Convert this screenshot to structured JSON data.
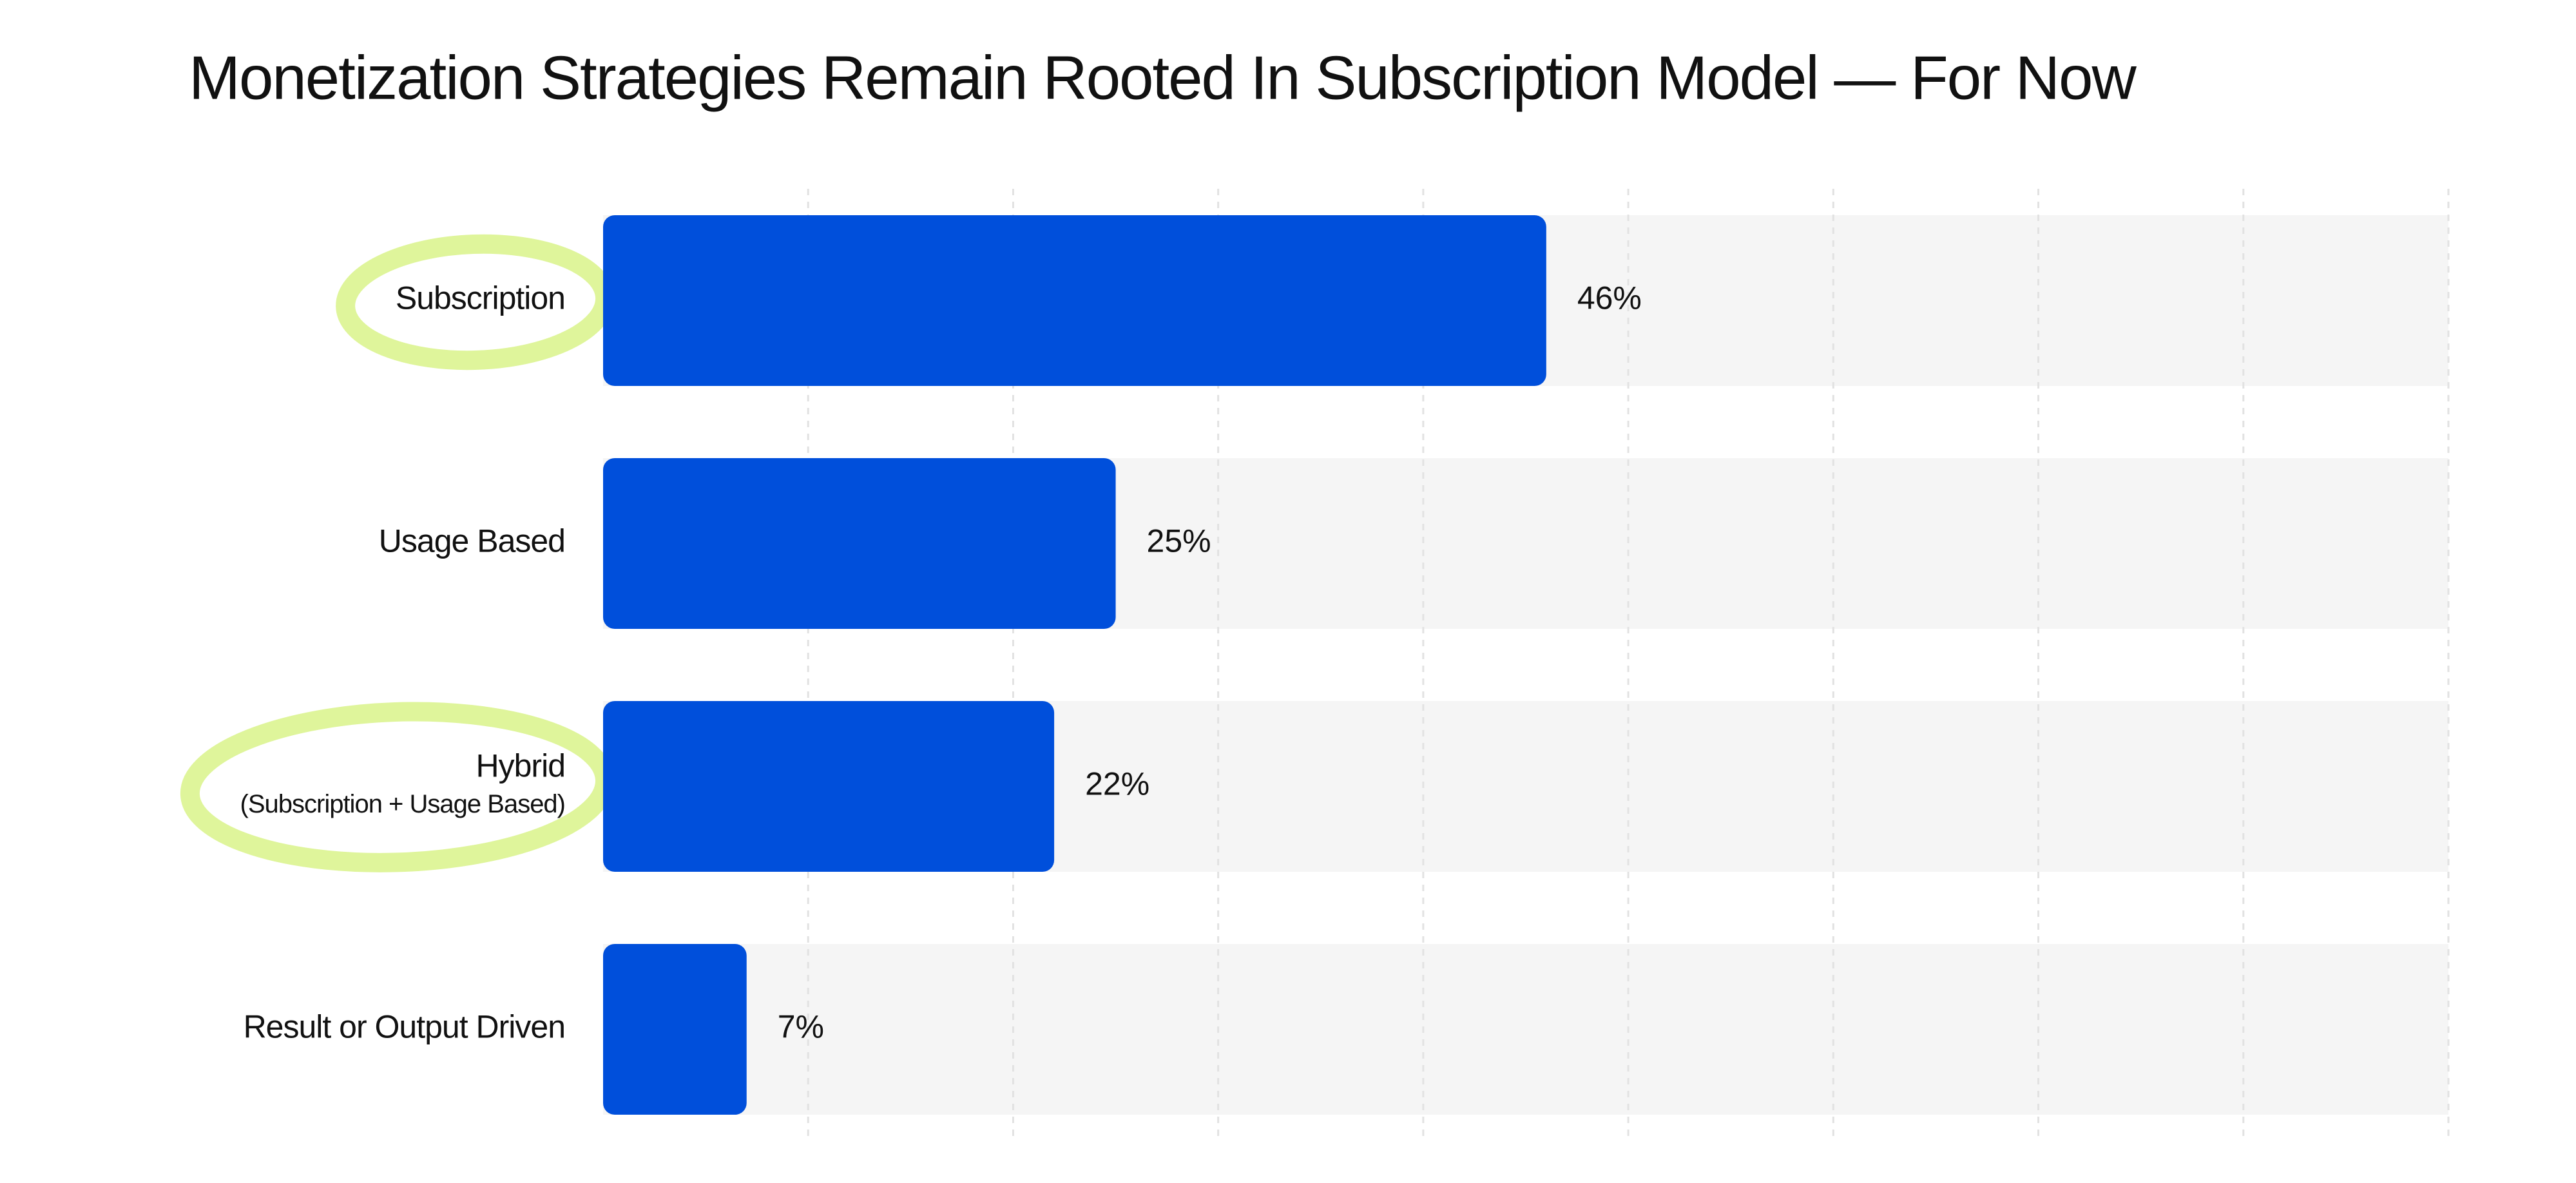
{
  "chart_data": {
    "type": "hbar",
    "title": "Monetization Strategies Remain Rooted In Subscription Model — For Now",
    "categories": [
      "Subscription",
      "Usage Based",
      "Hybrid",
      "Result or Output Driven"
    ],
    "category_sublabels": [
      null,
      null,
      "(Subscription + Usage Based)",
      null
    ],
    "values": [
      46,
      25,
      22,
      7
    ],
    "value_labels": [
      "46%",
      "25%",
      "22%",
      "7%"
    ],
    "highlighted": [
      true,
      false,
      true,
      false
    ],
    "color": "#004fdb",
    "highlight_color": "#dff59b",
    "xlim": [
      0,
      90
    ],
    "xticks": [
      0,
      10,
      20,
      30,
      40,
      50,
      60,
      70,
      80,
      90
    ],
    "grid": true
  }
}
